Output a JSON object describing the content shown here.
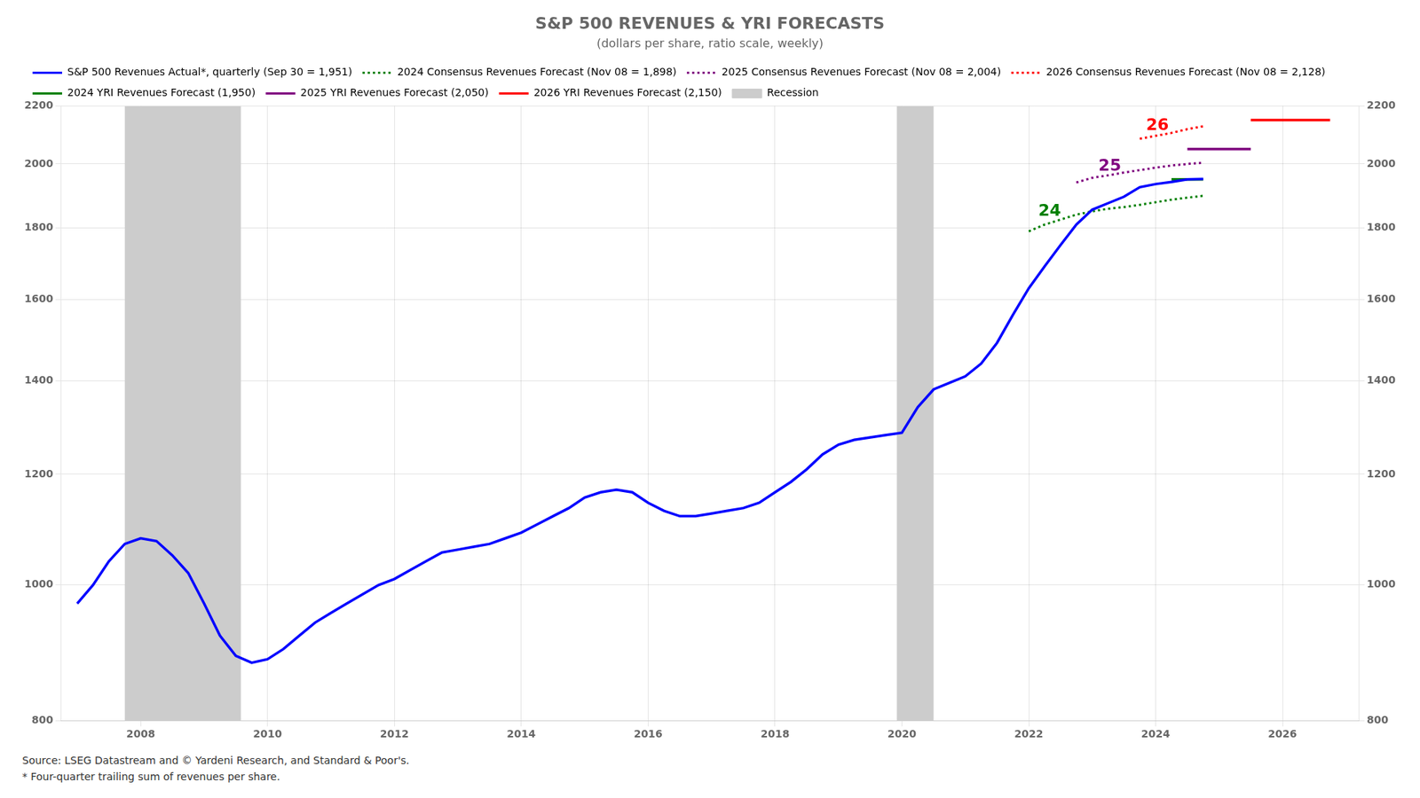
{
  "chart_data": {
    "type": "line",
    "title": "S&P 500 REVENUES & YRI FORECASTS",
    "subtitle": "(dollars per share, ratio scale, weekly)",
    "series": [
      {
        "name": "S&P 500 Revenues Actual*, quarterly (Sep 30 = 1,951)",
        "color": "#0000ff",
        "line_style": "solid",
        "x": [
          2007.0,
          2007.25,
          2007.5,
          2007.75,
          2008.0,
          2008.25,
          2008.5,
          2008.75,
          2009.0,
          2009.25,
          2009.5,
          2009.75,
          2010.0,
          2010.25,
          2010.5,
          2010.75,
          2011.0,
          2011.25,
          2011.5,
          2011.75,
          2012.0,
          2012.25,
          2012.5,
          2012.75,
          2013.0,
          2013.25,
          2013.5,
          2013.75,
          2014.0,
          2014.25,
          2014.5,
          2014.75,
          2015.0,
          2015.25,
          2015.5,
          2015.75,
          2016.0,
          2016.25,
          2016.5,
          2016.75,
          2017.0,
          2017.25,
          2017.5,
          2017.75,
          2018.0,
          2018.25,
          2018.5,
          2018.75,
          2019.0,
          2019.25,
          2019.5,
          2019.75,
          2020.0,
          2020.25,
          2020.5,
          2020.75,
          2021.0,
          2021.25,
          2021.5,
          2021.75,
          2022.0,
          2022.25,
          2022.5,
          2022.75,
          2023.0,
          2023.25,
          2023.5,
          2023.75,
          2024.0,
          2024.25,
          2024.5,
          2024.75
        ],
        "values": [
          970,
          1000,
          1040,
          1070,
          1080,
          1075,
          1050,
          1020,
          970,
          920,
          890,
          880,
          885,
          900,
          920,
          940,
          955,
          970,
          985,
          1000,
          1010,
          1025,
          1040,
          1055,
          1060,
          1065,
          1070,
          1080,
          1090,
          1105,
          1120,
          1135,
          1155,
          1165,
          1170,
          1165,
          1145,
          1130,
          1120,
          1120,
          1125,
          1130,
          1135,
          1145,
          1165,
          1185,
          1210,
          1240,
          1260,
          1270,
          1275,
          1280,
          1285,
          1340,
          1380,
          1395,
          1410,
          1440,
          1490,
          1560,
          1630,
          1690,
          1750,
          1810,
          1855,
          1875,
          1895,
          1925,
          1935,
          1942,
          1950,
          1951
        ]
      },
      {
        "name": "2024 Consensus Revenues Forecast (Nov 08 = 1,898)",
        "color": "#008000",
        "line_style": "dotted",
        "x": [
          2022.0,
          2022.25,
          2022.5,
          2022.75,
          2023.0,
          2023.25,
          2023.5,
          2023.75,
          2024.0,
          2024.25,
          2024.5,
          2024.75
        ],
        "values": [
          1790,
          1810,
          1825,
          1840,
          1850,
          1858,
          1863,
          1870,
          1878,
          1886,
          1892,
          1898
        ]
      },
      {
        "name": "2025 Consensus Revenues Forecast (Nov 08 = 2,004)",
        "color": "#800080",
        "line_style": "dotted",
        "x": [
          2022.75,
          2023.0,
          2023.25,
          2023.5,
          2023.75,
          2024.0,
          2024.25,
          2024.5,
          2024.75
        ],
        "values": [
          1940,
          1955,
          1963,
          1972,
          1980,
          1988,
          1995,
          2000,
          2004
        ]
      },
      {
        "name": "2026 Consensus Revenues Forecast (Nov 08 = 2,128)",
        "color": "#ff0000",
        "line_style": "dotted",
        "x": [
          2023.75,
          2024.0,
          2024.25,
          2024.5,
          2024.75
        ],
        "values": [
          2085,
          2095,
          2105,
          2118,
          2128
        ]
      },
      {
        "name": "2024 YRI Revenues Forecast (1,950)",
        "color": "#008000",
        "line_style": "solid",
        "x": [
          2024.25,
          2024.75
        ],
        "values": [
          1950,
          1950
        ]
      },
      {
        "name": "2025 YRI Revenues Forecast (2,050)",
        "color": "#800080",
        "line_style": "solid",
        "x": [
          2024.5,
          2025.5
        ],
        "values": [
          2050,
          2050
        ]
      },
      {
        "name": "2026 YRI Revenues Forecast (2,150)",
        "color": "#ff0000",
        "line_style": "solid",
        "x": [
          2025.5,
          2026.75
        ],
        "values": [
          2150,
          2150
        ]
      }
    ],
    "shading": {
      "name": "Recession",
      "color": "#cccccc",
      "spans": [
        {
          "start": 2007.75,
          "end": 2009.58
        },
        {
          "start": 2019.92,
          "end": 2020.5
        }
      ]
    },
    "annotations": [
      {
        "text": "24",
        "x": 2022.15,
        "y": 1850,
        "color": "#008000"
      },
      {
        "text": "25",
        "x": 2023.1,
        "y": 1993,
        "color": "#800080"
      },
      {
        "text": "26",
        "x": 2023.85,
        "y": 2130,
        "color": "#ff0000"
      }
    ],
    "notes": [
      "Source: LSEG Datastream and © Yardeni Research, and Standard & Poor's.",
      "* Four-quarter trailing sum of revenues per share."
    ],
    "log": "y",
    "xlim": [
      2006.75,
      2027.2
    ],
    "xticks": [
      2008,
      2010,
      2012,
      2014,
      2016,
      2018,
      2020,
      2022,
      2024,
      2026
    ],
    "ylim": [
      800,
      2200
    ],
    "yticks": [
      800,
      1000,
      1200,
      1400,
      1600,
      1800,
      2000,
      2200
    ],
    "y2lim": [
      800,
      2200
    ],
    "y2ticks": [
      800,
      1000,
      1200,
      1400,
      1600,
      1800,
      2000,
      2200
    ],
    "grid": true,
    "legend": "upper left"
  }
}
